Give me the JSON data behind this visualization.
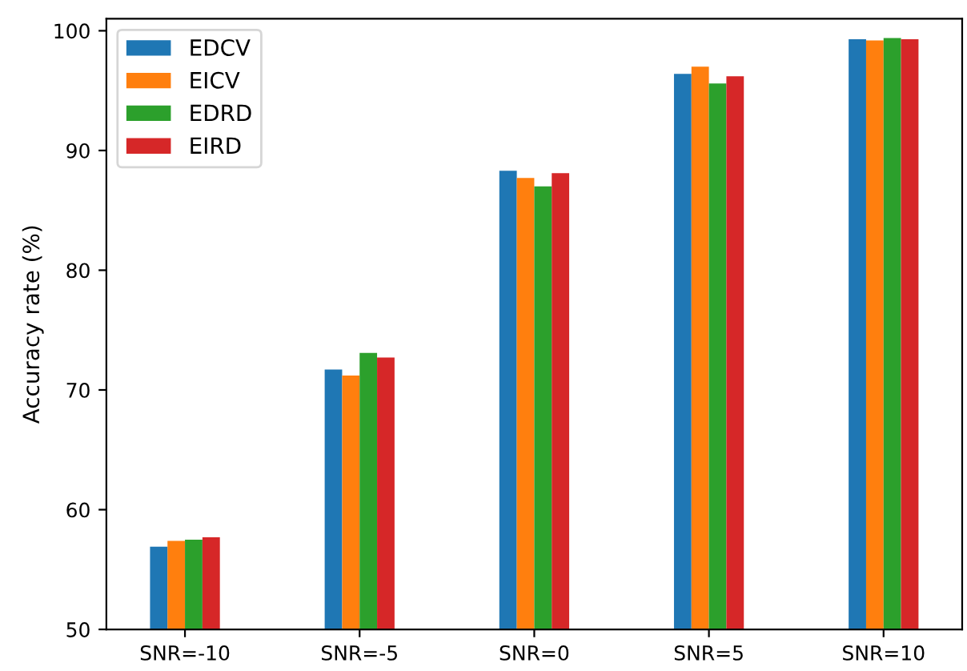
{
  "chart_data": {
    "type": "bar",
    "ylabel": "Accuracy rate (%)",
    "categories": [
      "SNR=-10",
      "SNR=-5",
      "SNR=0",
      "SNR=5",
      "SNR=10"
    ],
    "series": [
      {
        "name": "EDCV",
        "color": "#1f77b4",
        "values": [
          56.9,
          71.7,
          88.3,
          96.4,
          99.3
        ]
      },
      {
        "name": "EICV",
        "color": "#ff7f0e",
        "values": [
          57.4,
          71.2,
          87.7,
          97.0,
          99.2
        ]
      },
      {
        "name": "EDRD",
        "color": "#2ca02c",
        "values": [
          57.5,
          73.1,
          87.0,
          95.6,
          99.4
        ]
      },
      {
        "name": "EIRD",
        "color": "#d62728",
        "values": [
          57.7,
          72.7,
          88.1,
          96.2,
          99.3
        ]
      }
    ],
    "ylim": [
      50,
      101
    ],
    "yticks": [
      50,
      60,
      70,
      80,
      90,
      100
    ],
    "grid": false,
    "legend": "top left"
  }
}
